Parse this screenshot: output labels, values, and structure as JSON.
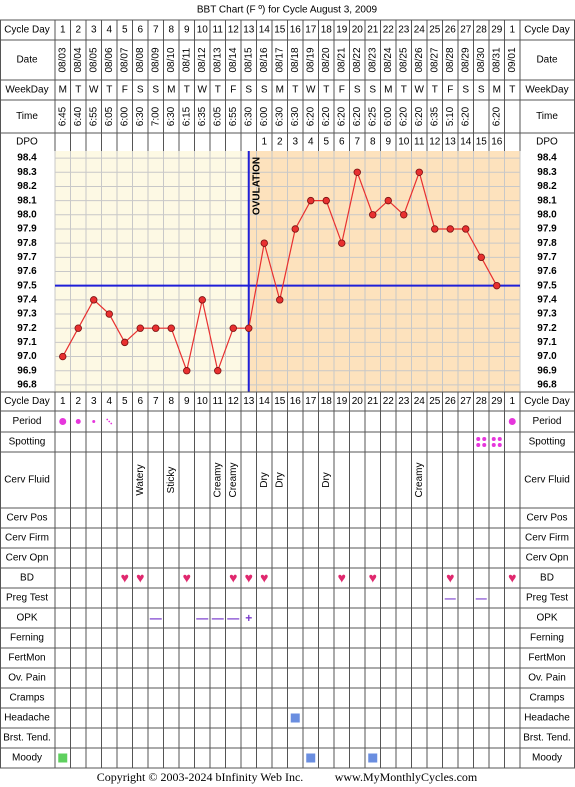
{
  "title": "BBT Chart (F º) for Cycle August 3, 2009",
  "top_rows": [
    "Cycle Day",
    "Date",
    "WeekDay",
    "Time",
    "DPO"
  ],
  "bottom_rows": [
    "Cycle Day",
    "Period",
    "Spotting",
    "Cerv Fluid",
    "Cerv Pos",
    "Cerv Firm",
    "Cerv Opn",
    "BD",
    "Preg Test",
    "OPK",
    "Ferning",
    "FertMon",
    "Ov. Pain",
    "Cramps",
    "Headache",
    "Brst. Tend.",
    "Moody"
  ],
  "cycle_days": [
    1,
    2,
    3,
    4,
    5,
    6,
    7,
    8,
    9,
    10,
    11,
    12,
    13,
    14,
    15,
    16,
    17,
    18,
    19,
    20,
    21,
    22,
    23,
    24,
    25,
    26,
    27,
    28,
    29,
    1
  ],
  "dates": [
    "08/03",
    "08/04",
    "08/05",
    "08/06",
    "08/07",
    "08/08",
    "08/09",
    "08/10",
    "08/11",
    "08/12",
    "08/13",
    "08/14",
    "08/15",
    "08/16",
    "08/17",
    "08/18",
    "08/19",
    "08/20",
    "08/21",
    "08/22",
    "08/23",
    "08/24",
    "08/25",
    "08/26",
    "08/27",
    "08/28",
    "08/29",
    "08/30",
    "08/31",
    "09/01"
  ],
  "weekdays": [
    "M",
    "T",
    "W",
    "T",
    "F",
    "S",
    "S",
    "M",
    "T",
    "W",
    "T",
    "F",
    "S",
    "S",
    "M",
    "T",
    "W",
    "T",
    "F",
    "S",
    "S",
    "M",
    "T",
    "W",
    "T",
    "F",
    "S",
    "S",
    "M",
    "T"
  ],
  "times": [
    "6:45",
    "6:40",
    "6:55",
    "6:05",
    "6:00",
    "6:30",
    "7:00",
    "6:30",
    "6:15",
    "6:35",
    "6:05",
    "6:55",
    "6:30",
    "6:00",
    "6:30",
    "6:30",
    "6:20",
    "6:20",
    "6:20",
    "6:20",
    "6:25",
    "6:00",
    "6:20",
    "6:20",
    "6:35",
    "5:10",
    "6:20",
    null,
    "6:20",
    null
  ],
  "dpo": [
    null,
    null,
    null,
    null,
    null,
    null,
    null,
    null,
    null,
    null,
    null,
    null,
    null,
    1,
    2,
    3,
    4,
    5,
    6,
    7,
    8,
    9,
    10,
    11,
    12,
    13,
    14,
    15,
    16,
    null
  ],
  "chart_data": {
    "type": "line",
    "ylim": [
      96.75,
      98.45
    ],
    "yticks": [
      {
        "value": 96.8,
        "label": "96.8"
      },
      96.9,
      {
        "value": 97,
        "label": "97.0"
      },
      97.1,
      97.2,
      97.3,
      97.4,
      97.5,
      97.6,
      97.7,
      97.8,
      97.9,
      {
        "value": 98,
        "label": "98.0"
      },
      98.1,
      98.2,
      98.3,
      98.4
    ],
    "series": [
      {
        "name": "BBT",
        "color": "#e83030",
        "values": [
          97.0,
          97.2,
          97.4,
          97.3,
          97.1,
          97.2,
          97.2,
          97.2,
          96.9,
          97.4,
          96.9,
          97.2,
          97.2,
          97.8,
          97.4,
          97.9,
          98.1,
          98.1,
          97.8,
          98.3,
          98.0,
          98.1,
          98.0,
          98.3,
          97.9,
          97.9,
          97.9,
          97.7,
          97.5,
          null
        ]
      }
    ],
    "coverline": 97.5,
    "ovulation_day": 13,
    "ovulation_label": "OVULATION",
    "pre_color": "#fdf9e4",
    "post_color": "#fde2bd",
    "line_color": "#1f1fd8"
  },
  "period": [
    4,
    3,
    2,
    1,
    null,
    null,
    null,
    null,
    null,
    null,
    null,
    null,
    null,
    null,
    null,
    null,
    null,
    null,
    null,
    null,
    null,
    null,
    null,
    null,
    null,
    null,
    null,
    null,
    null,
    4
  ],
  "period_color": "#e636dc",
  "spotting": [
    null,
    null,
    null,
    null,
    null,
    null,
    null,
    null,
    null,
    null,
    null,
    null,
    null,
    null,
    null,
    null,
    null,
    null,
    null,
    null,
    null,
    null,
    null,
    null,
    null,
    null,
    null,
    1,
    1,
    null
  ],
  "cervical_fluid": [
    null,
    null,
    null,
    null,
    null,
    "Watery",
    null,
    "Sticky",
    null,
    null,
    "Creamy",
    "Creamy",
    null,
    "Dry",
    "Dry",
    null,
    null,
    "Dry",
    null,
    null,
    null,
    null,
    null,
    "Creamy",
    null,
    null,
    null,
    null,
    null,
    null
  ],
  "bd": [
    null,
    null,
    null,
    null,
    "♥",
    "♥",
    null,
    null,
    "♥",
    null,
    null,
    "♥",
    "♥",
    "♥",
    null,
    null,
    null,
    null,
    "♥",
    null,
    "♥",
    null,
    null,
    null,
    null,
    "♥",
    null,
    null,
    null,
    "♥"
  ],
  "bd_color": "#e0286e",
  "preg_test": [
    null,
    null,
    null,
    null,
    null,
    null,
    null,
    null,
    null,
    null,
    null,
    null,
    null,
    null,
    null,
    null,
    null,
    null,
    null,
    null,
    null,
    null,
    null,
    null,
    null,
    "—",
    null,
    "—",
    null,
    null
  ],
  "opk": [
    null,
    null,
    null,
    null,
    null,
    null,
    "—",
    null,
    null,
    "—",
    "—",
    "—",
    "+",
    null,
    null,
    null,
    null,
    null,
    null,
    null,
    null,
    null,
    null,
    null,
    null,
    null,
    null,
    null,
    null,
    null
  ],
  "test_color": "#7a3ccc",
  "headache": [
    null,
    null,
    null,
    null,
    null,
    null,
    null,
    null,
    null,
    null,
    null,
    null,
    null,
    null,
    null,
    "#6a8ee0",
    null,
    null,
    null,
    null,
    null,
    null,
    null,
    null,
    null,
    null,
    null,
    null,
    null,
    null
  ],
  "moody": [
    "#5ed05e",
    null,
    null,
    null,
    null,
    null,
    null,
    null,
    null,
    null,
    null,
    null,
    null,
    null,
    null,
    null,
    "#6a8ee0",
    null,
    null,
    null,
    "#6a8ee0",
    null,
    null,
    null,
    null,
    null,
    null,
    null,
    null,
    null
  ],
  "footer": [
    "Copyright © 2003-2024 bInfinity Web Inc.",
    "www.MyMonthlyCycles.com"
  ]
}
